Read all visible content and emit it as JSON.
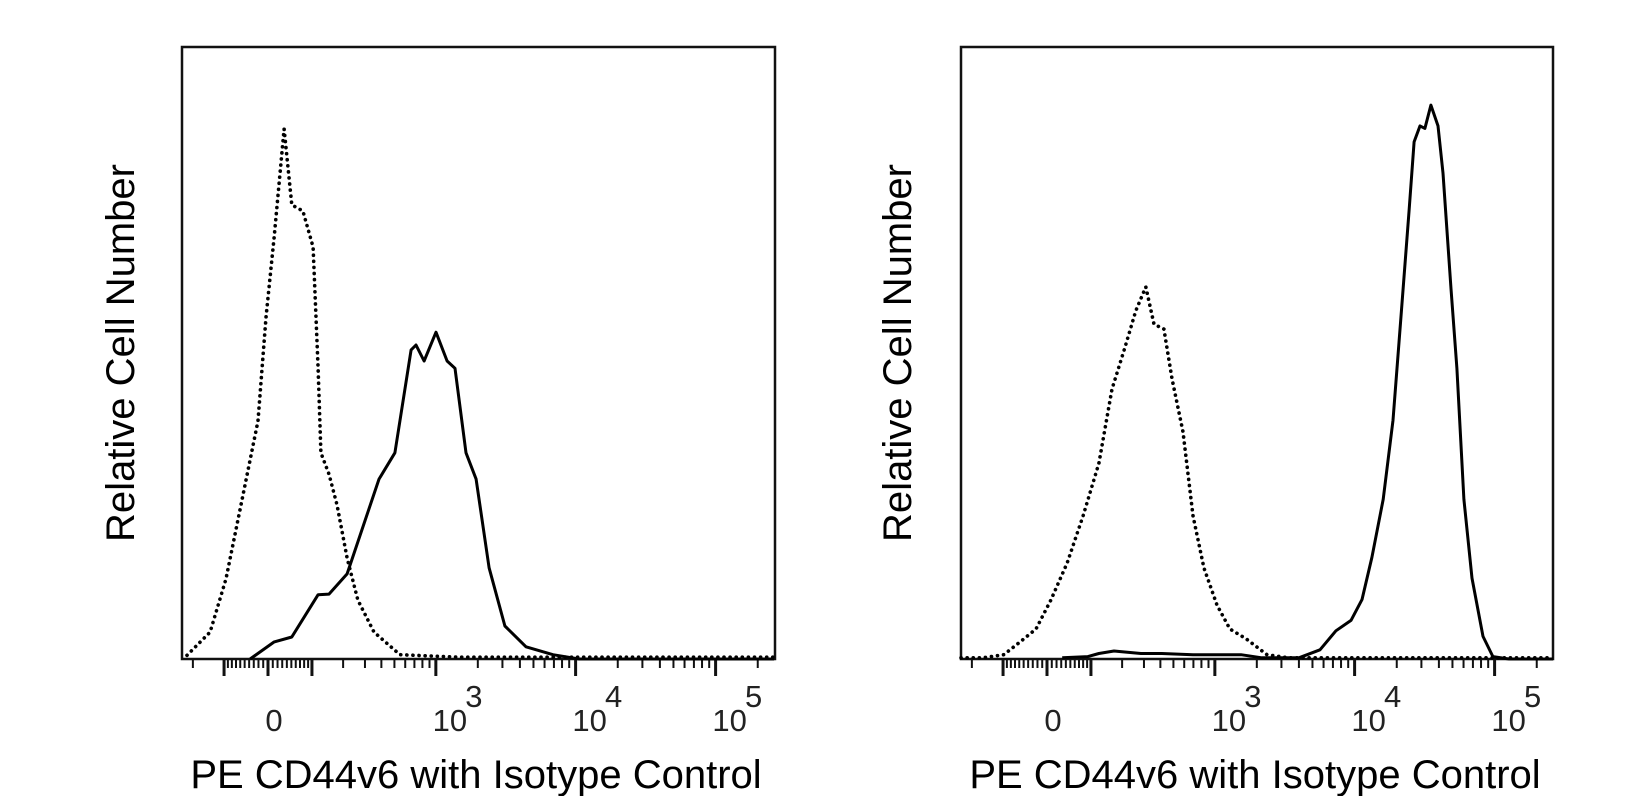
{
  "chart_data": [
    {
      "type": "line",
      "title": "",
      "xlabel": "PE CD44v6 with Isotype Control",
      "ylabel": "Relative Cell Number",
      "x_scale": "logicle",
      "xlim": [
        -250,
        262144
      ],
      "ylim": [
        0,
        100
      ],
      "grid": false,
      "legend": "none",
      "x_tick_labels": [
        {
          "value": 0,
          "base": "0",
          "exp": ""
        },
        {
          "value": 1000,
          "base": "10",
          "exp": "3"
        },
        {
          "value": 10000,
          "base": "10",
          "exp": "4"
        },
        {
          "value": 100000,
          "base": "10",
          "exp": "5"
        }
      ],
      "series": [
        {
          "style": "dotted",
          "color": "#000000",
          "points": [
            [
              -224,
              0.6
            ],
            [
              -140,
              4.4
            ],
            [
              -95,
              13.1
            ],
            [
              -56,
              26.0
            ],
            [
              -21,
              38.9
            ],
            [
              -4,
              56.0
            ],
            [
              13,
              69.0
            ],
            [
              34,
              86.6
            ],
            [
              51,
              74.2
            ],
            [
              77,
              73.2
            ],
            [
              103,
              67.3
            ],
            [
              117,
              47.5
            ],
            [
              125,
              33.7
            ],
            [
              150,
              30.2
            ],
            [
              177,
              25.2
            ],
            [
              216,
              16.5
            ],
            [
              264,
              9.6
            ],
            [
              352,
              4.4
            ],
            [
              549,
              0.7
            ],
            [
              1500,
              0.3
            ],
            [
              262144,
              0.3
            ]
          ]
        },
        {
          "style": "solid",
          "color": "#000000",
          "points": [
            [
              -38,
              0
            ],
            [
              13,
              2.8
            ],
            [
              51,
              3.6
            ],
            [
              117,
              10.5
            ],
            [
              150,
              10.6
            ],
            [
              216,
              13.9
            ],
            [
              384,
              29.4
            ],
            [
              504,
              33.7
            ],
            [
              662,
              50.5
            ],
            [
              719,
              51.3
            ],
            [
              822,
              48.7
            ],
            [
              1002,
              53.4
            ],
            [
              1204,
              48.7
            ],
            [
              1372,
              47.5
            ],
            [
              1647,
              33.7
            ],
            [
              1943,
              29.4
            ],
            [
              2408,
              14.9
            ],
            [
              3125,
              5.4
            ],
            [
              4420,
              2.0
            ],
            [
              6896,
              0.7
            ],
            [
              10580,
              0
            ],
            [
              262144,
              0
            ]
          ]
        }
      ]
    },
    {
      "type": "line",
      "title": "",
      "xlabel": "PE CD44v6 with Isotype Control",
      "ylabel": "Relative Cell Number",
      "x_scale": "logicle",
      "xlim": [
        -250,
        262144
      ],
      "ylim": [
        0,
        100
      ],
      "grid": false,
      "legend": "none",
      "x_tick_labels": [
        {
          "value": 0,
          "base": "0",
          "exp": ""
        },
        {
          "value": 1000,
          "base": "10",
          "exp": "3"
        },
        {
          "value": 10000,
          "base": "10",
          "exp": "4"
        },
        {
          "value": 100000,
          "base": "10",
          "exp": "5"
        }
      ],
      "series": [
        {
          "style": "dotted",
          "color": "#000000",
          "points": [
            [
              -250,
              0.2
            ],
            [
              -160,
              0.2
            ],
            [
              -98,
              0.7
            ],
            [
              -58,
              2.8
            ],
            [
              -23,
              4.9
            ],
            [
              8,
              9.6
            ],
            [
              43,
              15.7
            ],
            [
              80,
              23.4
            ],
            [
              122,
              32.0
            ],
            [
              163,
              44.1
            ],
            [
              212,
              51.0
            ],
            [
              259,
              56.9
            ],
            [
              310,
              60.8
            ],
            [
              358,
              54.7
            ],
            [
              425,
              53.9
            ],
            [
              488,
              45.8
            ],
            [
              588,
              37.1
            ],
            [
              695,
              23.4
            ],
            [
              834,
              14.9
            ],
            [
              1036,
              8.8
            ],
            [
              1283,
              4.9
            ],
            [
              1676,
              3.3
            ],
            [
              2365,
              0.7
            ],
            [
              3340,
              0.2
            ],
            [
              262144,
              0.2
            ]
          ]
        },
        {
          "style": "solid",
          "color": "#000000",
          "points": [
            [
              32,
              0.2
            ],
            [
              92,
              0.4
            ],
            [
              122,
              0.9
            ],
            [
              170,
              1.3
            ],
            [
              284,
              0.9
            ],
            [
              410,
              0.9
            ],
            [
              695,
              0.7
            ],
            [
              1540,
              0.7
            ],
            [
              2175,
              0.2
            ],
            [
              4000,
              0.2
            ],
            [
              5660,
              1.5
            ],
            [
              7350,
              4.6
            ],
            [
              9420,
              6.3
            ],
            [
              11300,
              9.7
            ],
            [
              13300,
              16.6
            ],
            [
              16000,
              26.1
            ],
            [
              18800,
              39.0
            ],
            [
              21500,
              56.2
            ],
            [
              24500,
              73.3
            ],
            [
              26600,
              84.5
            ],
            [
              29300,
              87.1
            ],
            [
              31800,
              86.7
            ],
            [
              35100,
              90.5
            ],
            [
              39400,
              87.1
            ],
            [
              42800,
              79.4
            ],
            [
              48800,
              60.5
            ],
            [
              53800,
              47.5
            ],
            [
              60400,
              26.1
            ],
            [
              68900,
              13.2
            ],
            [
              82600,
              3.7
            ],
            [
              97300,
              0.4
            ],
            [
              126700,
              0
            ],
            [
              262144,
              0
            ]
          ]
        }
      ]
    }
  ]
}
